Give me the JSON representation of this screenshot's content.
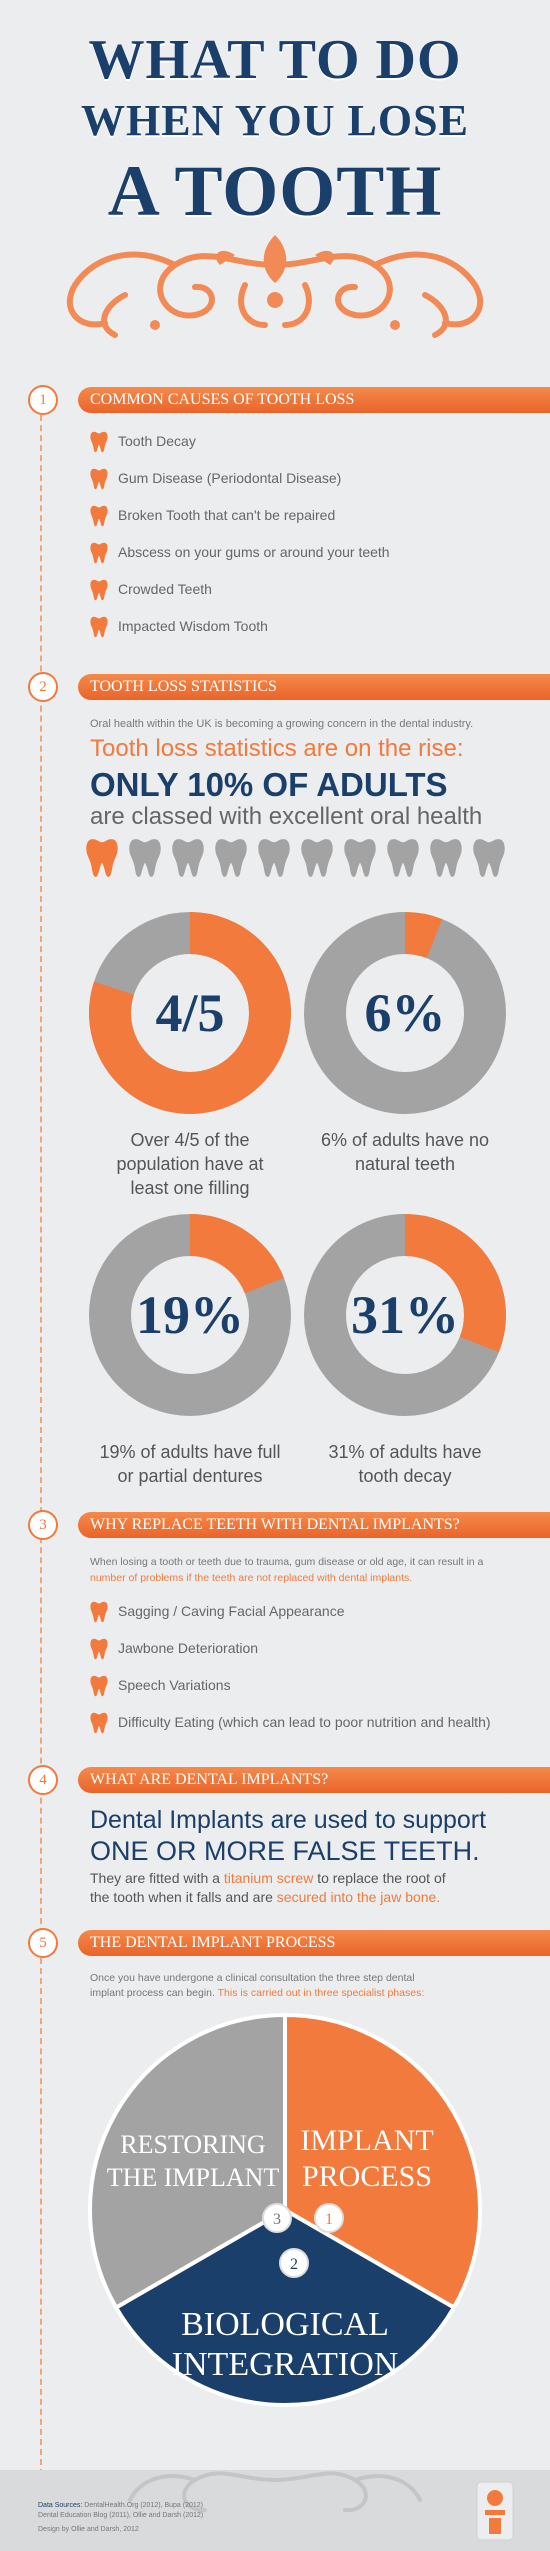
{
  "header": {
    "title_line1": "WHAT TO DO",
    "title_line2": "WHEN YOU LOSE",
    "title_line3": "A TOOTH"
  },
  "colors": {
    "orange": "#f27a3c",
    "navy": "#1b3f6b",
    "grey": "#a3a3a3",
    "background": "#ecedee"
  },
  "section1": {
    "number": "1",
    "title": "COMMON CAUSES OF TOOTH LOSS",
    "items": [
      "Tooth Decay",
      "Gum Disease (Periodontal Disease)",
      "Broken Tooth that can't be repaired",
      "Abscess on your gums or around your teeth",
      "Crowded Teeth",
      "Impacted Wisdom Tooth"
    ]
  },
  "section2": {
    "number": "2",
    "title": "TOOTH LOSS STATISTICS",
    "intro": "Oral health within the UK is becoming a growing concern in the dental industry.",
    "headline": "Tooth loss statistics are on the rise:",
    "big_stat": "ONLY 10% OF ADULTS",
    "big_stat_sub": "are classed with excellent oral health",
    "teeth_highlighted": 1,
    "teeth_total": 10,
    "stats": [
      {
        "label": "4/5",
        "fraction": 0.8,
        "caption_line1": "Over 4/5 of the",
        "caption_line2": "population have at",
        "caption_line3": "least one filling"
      },
      {
        "label": "6%",
        "fraction": 0.06,
        "caption_line1": "6% of adults have no",
        "caption_line2": "natural teeth",
        "caption_line3": ""
      },
      {
        "label": "19%",
        "fraction": 0.19,
        "caption_line1": "19% of adults have full",
        "caption_line2": "or partial dentures",
        "caption_line3": ""
      },
      {
        "label": "31%",
        "fraction": 0.31,
        "caption_line1": "31% of adults have",
        "caption_line2": "tooth decay",
        "caption_line3": ""
      }
    ]
  },
  "section3": {
    "number": "3",
    "title": "WHY REPLACE TEETH WITH DENTAL IMPLANTS?",
    "intro_a": "When losing a tooth or teeth due to trauma, gum disease or old age, it can result in a",
    "intro_b": "number of problems if the teeth are not replaced with dental implants.",
    "items": [
      "Sagging / Caving Facial Appearance",
      "Jawbone Deterioration",
      "Speech Variations",
      "Difficulty Eating (which can lead to poor nutrition and health)"
    ]
  },
  "section4": {
    "number": "4",
    "title": "WHAT ARE DENTAL IMPLANTS?",
    "line1": "Dental Implants are used to support",
    "line2": "ONE OR MORE FALSE TEETH.",
    "line3_a": "They are fitted with a ",
    "line3_b": "titanium screw",
    "line3_c": " to replace the root of",
    "line4_a": "the tooth when it falls and are ",
    "line4_b": "secured into the jaw bone."
  },
  "section5": {
    "number": "5",
    "title": "THE DENTAL IMPLANT PROCESS",
    "intro_a": "Once you have undergone a clinical consultation the three step dental",
    "intro_b": "implant process can begin. ",
    "intro_c": "This is carried out in three specialist phases:",
    "phase1_line1": "IMPLANT",
    "phase1_line2": "PROCESS",
    "phase1_num": "1",
    "phase2_line1": "BIOLOGICAL",
    "phase2_line2": "INTEGRATION",
    "phase2_num": "2",
    "phase3_line1": "RESTORING",
    "phase3_line2": "THE IMPLANT",
    "phase3_num": "3"
  },
  "footer": {
    "sources_label": "Data Sources:",
    "sources_1": " DentalHealth.Org (2012), Bupa (2012)",
    "sources_2": "Dental Education Blog (2011), Ollie and Darsh (2012)",
    "design": "Design by Ollie and Darsh, 2012"
  }
}
